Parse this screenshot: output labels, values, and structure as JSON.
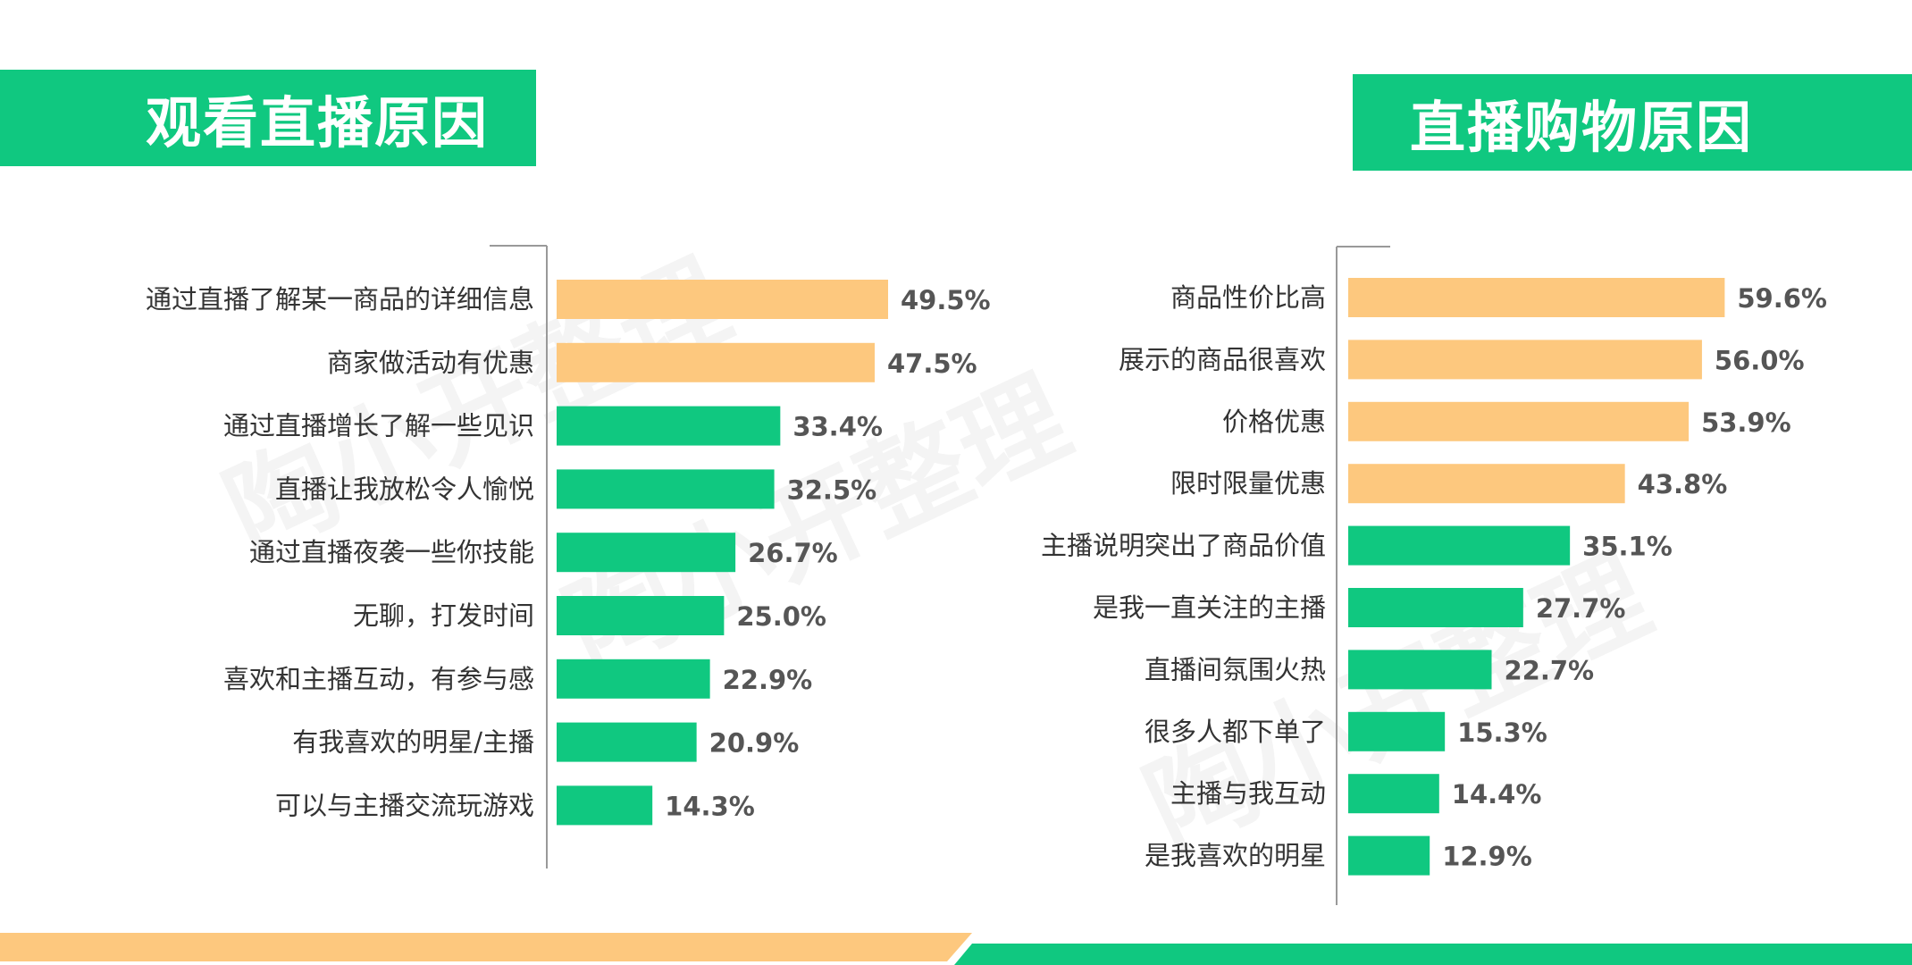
{
  "banners": {
    "left": "观看直播原因",
    "right": "直播购物原因"
  },
  "watermark": "陶小开整理",
  "colors": {
    "green": "#10c880",
    "orange": "#fdc87e",
    "label_text": "#333333",
    "value_text": "#555555"
  },
  "chart_data": [
    {
      "type": "bar",
      "orientation": "horizontal",
      "title": "观看直播原因",
      "categories": [
        "通过直播了解某一商品的详细信息",
        "商家做活动有优惠",
        "通过直播增长了解一些见识",
        "直播让我放松令人愉悦",
        "通过直播夜袭一些你技能",
        "无聊，打发时间",
        "喜欢和主播互动，有参与感",
        "有我喜欢的明星/主播",
        "可以与主播交流玩游戏"
      ],
      "values": [
        49.5,
        47.5,
        33.4,
        32.5,
        26.7,
        25.0,
        22.9,
        20.9,
        14.3
      ],
      "value_labels": [
        "49.5%",
        "47.5%",
        "33.4%",
        "32.5%",
        "26.7%",
        "25.0%",
        "22.9%",
        "20.9%",
        "14.3%"
      ],
      "highlighted_count": 2,
      "xlim": [
        0,
        100
      ]
    },
    {
      "type": "bar",
      "orientation": "horizontal",
      "title": "直播购物原因",
      "categories": [
        "商品性价比高",
        "展示的商品很喜欢",
        "价格优惠",
        "限时限量优惠",
        "主播说明突出了商品价值",
        "是我一直关注的主播",
        "直播间氛围火热",
        "很多人都下单了",
        "主播与我互动",
        "是我喜欢的明星"
      ],
      "values": [
        59.6,
        56.0,
        53.9,
        43.8,
        35.1,
        27.7,
        22.7,
        15.3,
        14.4,
        12.9
      ],
      "value_labels": [
        "59.6%",
        "56.0%",
        "53.9%",
        "43.8%",
        "35.1%",
        "27.7%",
        "22.7%",
        "15.3%",
        "14.4%",
        "12.9%"
      ],
      "highlighted_count": 4,
      "xlim": [
        0,
        100
      ]
    }
  ]
}
